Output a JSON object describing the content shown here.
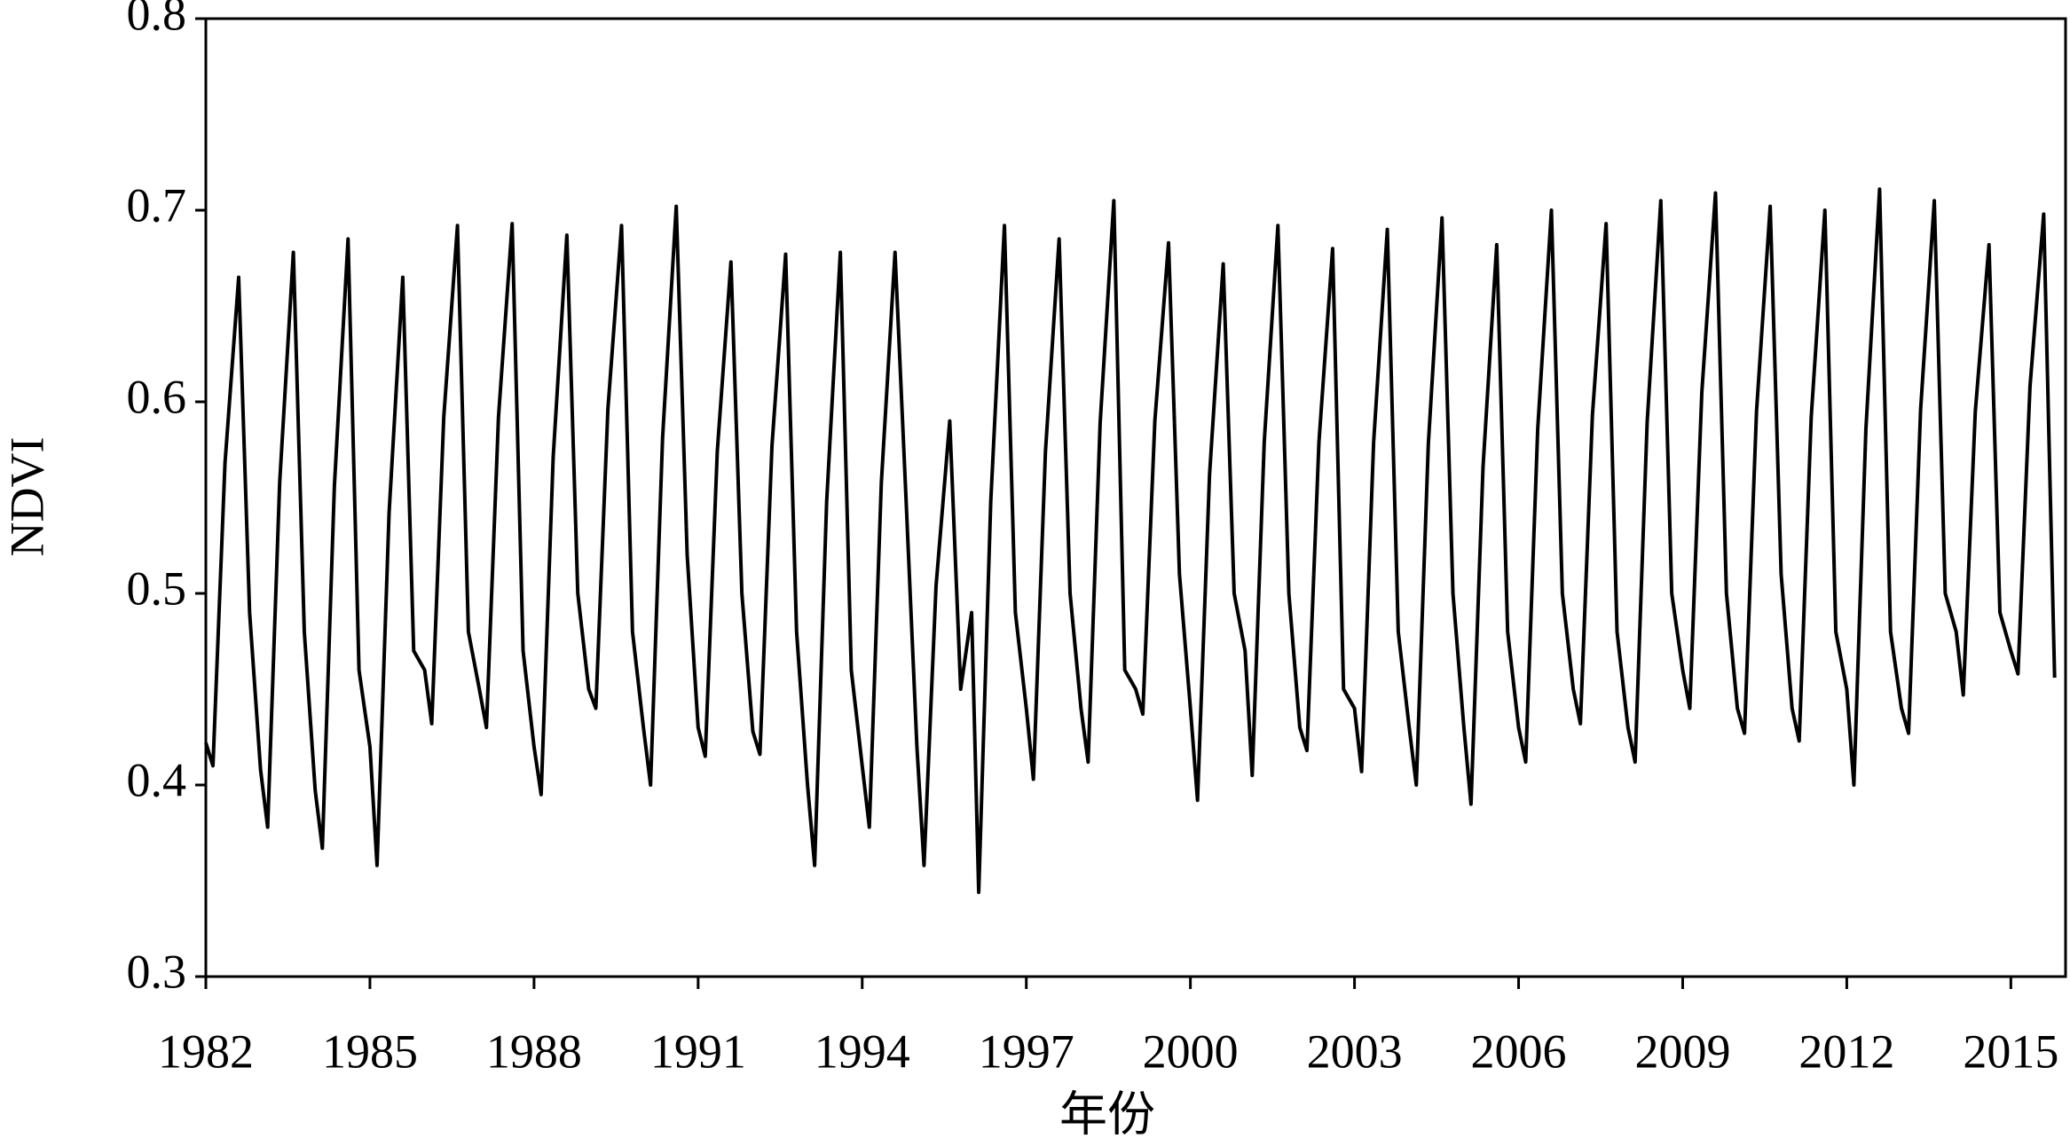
{
  "chart_data": {
    "type": "line",
    "x_label": "年份",
    "y_label": "NDVI",
    "color": "#000000",
    "xlim": [
      1982,
      2016
    ],
    "xticks": [
      1982,
      1985,
      1988,
      1991,
      1994,
      1997,
      2000,
      2003,
      2006,
      2009,
      2012,
      2015
    ],
    "ylim": [
      0.3,
      0.8
    ],
    "yticks": [
      0.3,
      0.4,
      0.5,
      0.6,
      0.7,
      0.8
    ],
    "x": [
      1982,
      1982.13,
      1982.35,
      1982.6,
      1982.8,
      1983,
      1983.13,
      1983.35,
      1983.6,
      1983.8,
      1984,
      1984.13,
      1984.35,
      1984.6,
      1984.8,
      1985,
      1985.13,
      1985.35,
      1985.6,
      1985.8,
      1986,
      1986.13,
      1986.35,
      1986.6,
      1986.8,
      1987,
      1987.13,
      1987.35,
      1987.6,
      1987.8,
      1988,
      1988.13,
      1988.35,
      1988.6,
      1988.8,
      1989,
      1989.13,
      1989.35,
      1989.6,
      1989.8,
      1990,
      1990.13,
      1990.35,
      1990.6,
      1990.8,
      1991,
      1991.13,
      1991.35,
      1991.6,
      1991.8,
      1992,
      1992.13,
      1992.35,
      1992.6,
      1992.8,
      1993,
      1993.13,
      1993.35,
      1993.6,
      1993.8,
      1994,
      1994.13,
      1994.35,
      1994.6,
      1994.8,
      1995,
      1995.13,
      1995.35,
      1995.6,
      1995.8,
      1996,
      1996.13,
      1996.35,
      1996.6,
      1996.8,
      1997,
      1997.13,
      1997.35,
      1997.6,
      1997.8,
      1998,
      1998.13,
      1998.35,
      1998.6,
      1998.8,
      1999,
      1999.13,
      1999.35,
      1999.6,
      1999.8,
      2000,
      2000.13,
      2000.35,
      2000.6,
      2000.8,
      2001,
      2001.13,
      2001.35,
      2001.6,
      2001.8,
      2002,
      2002.13,
      2002.35,
      2002.6,
      2002.8,
      2003,
      2003.13,
      2003.35,
      2003.6,
      2003.8,
      2004,
      2004.13,
      2004.35,
      2004.6,
      2004.8,
      2005,
      2005.13,
      2005.35,
      2005.6,
      2005.8,
      2006,
      2006.13,
      2006.35,
      2006.6,
      2006.8,
      2007,
      2007.13,
      2007.35,
      2007.6,
      2007.8,
      2008,
      2008.13,
      2008.35,
      2008.6,
      2008.8,
      2009,
      2009.13,
      2009.35,
      2009.6,
      2009.8,
      2010,
      2010.13,
      2010.35,
      2010.6,
      2010.8,
      2011,
      2011.13,
      2011.35,
      2011.6,
      2011.8,
      2012,
      2012.13,
      2012.35,
      2012.6,
      2012.8,
      2013,
      2013.13,
      2013.35,
      2013.6,
      2013.8,
      2014,
      2014.13,
      2014.35,
      2014.6,
      2014.8,
      2015,
      2015.13,
      2015.35,
      2015.6,
      2015.8
    ],
    "values": [
      0.422,
      0.41,
      0.568,
      0.665,
      0.49,
      0.408,
      0.378,
      0.558,
      0.678,
      0.48,
      0.397,
      0.367,
      0.556,
      0.685,
      0.46,
      0.42,
      0.358,
      0.542,
      0.665,
      0.47,
      0.46,
      0.432,
      0.592,
      0.692,
      0.48,
      0.45,
      0.43,
      0.592,
      0.693,
      0.47,
      0.42,
      0.395,
      0.571,
      0.687,
      0.5,
      0.45,
      0.44,
      0.596,
      0.692,
      0.48,
      0.43,
      0.4,
      0.581,
      0.702,
      0.52,
      0.43,
      0.415,
      0.574,
      0.673,
      0.5,
      0.428,
      0.416,
      0.577,
      0.677,
      0.48,
      0.4,
      0.358,
      0.548,
      0.678,
      0.46,
      0.41,
      0.378,
      0.558,
      0.678,
      0.55,
      0.42,
      0.358,
      0.504,
      0.59,
      0.45,
      0.49,
      0.344,
      0.548,
      0.692,
      0.49,
      0.44,
      0.403,
      0.574,
      0.685,
      0.5,
      0.44,
      0.412,
      0.589,
      0.705,
      0.46,
      0.45,
      0.437,
      0.59,
      0.683,
      0.51,
      0.44,
      0.392,
      0.562,
      0.672,
      0.5,
      0.47,
      0.405,
      0.579,
      0.692,
      0.5,
      0.43,
      0.418,
      0.579,
      0.68,
      0.45,
      0.44,
      0.407,
      0.579,
      0.69,
      0.48,
      0.43,
      0.4,
      0.578,
      0.696,
      0.5,
      0.43,
      0.39,
      0.566,
      0.682,
      0.48,
      0.43,
      0.412,
      0.586,
      0.7,
      0.5,
      0.45,
      0.432,
      0.593,
      0.693,
      0.48,
      0.43,
      0.412,
      0.589,
      0.705,
      0.5,
      0.46,
      0.44,
      0.605,
      0.709,
      0.5,
      0.44,
      0.427,
      0.595,
      0.702,
      0.51,
      0.44,
      0.423,
      0.592,
      0.7,
      0.48,
      0.45,
      0.4,
      0.586,
      0.711,
      0.48,
      0.44,
      0.427,
      0.596,
      0.705,
      0.5,
      0.48,
      0.447,
      0.595,
      0.682,
      0.49,
      0.47,
      0.458,
      0.608,
      0.698,
      0.456
    ]
  }
}
